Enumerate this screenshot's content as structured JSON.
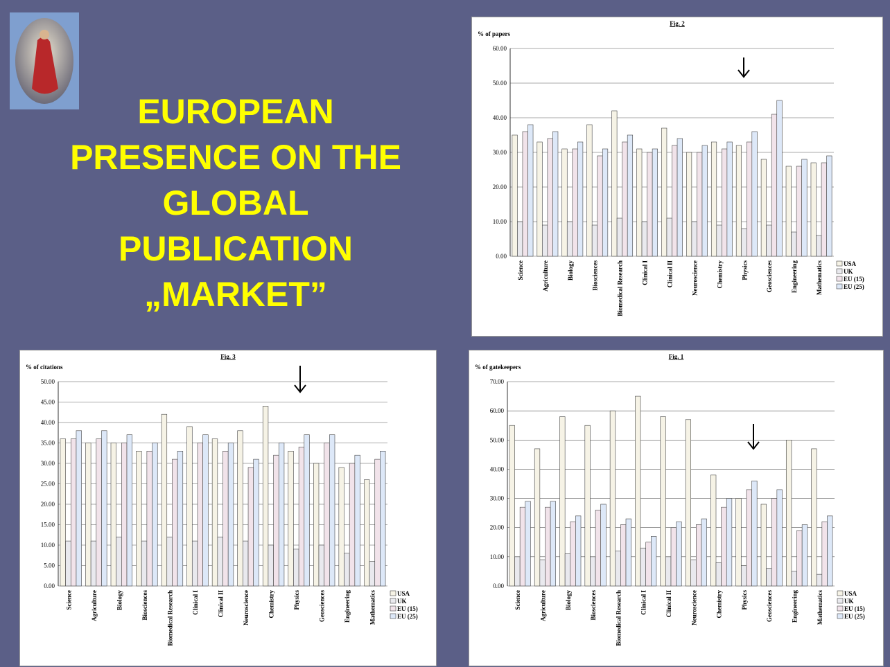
{
  "slide": {
    "title_lines": [
      "EUROPEAN",
      "PRESENCE ON THE",
      "GLOBAL",
      "PUBLICATION",
      "„MARKET”"
    ]
  },
  "chart_data": [
    {
      "type": "bar",
      "title": "Fig. 2",
      "y_label": "% of papers",
      "categories": [
        "Science",
        "Agriculture",
        "Biology",
        "Biosciences",
        "Biomedical Research",
        "Clinical I",
        "Clinical II",
        "Neuroscience",
        "Chemistry",
        "Physics",
        "Geosciences",
        "Engineering",
        "Mathematics"
      ],
      "series": [
        {
          "name": "USA",
          "color": "#f6f3e6",
          "values": [
            35,
            33,
            31,
            38,
            42,
            31,
            37,
            30,
            33,
            32,
            28,
            26,
            27
          ]
        },
        {
          "name": "UK",
          "color": "#e9e9ee",
          "values": [
            10,
            9,
            10,
            9,
            11,
            10,
            11,
            10,
            9,
            8,
            9,
            7,
            6
          ]
        },
        {
          "name": "EU (15)",
          "color": "#f1e3ea",
          "values": [
            36,
            34,
            31,
            29,
            33,
            30,
            32,
            30,
            31,
            33,
            41,
            26,
            27
          ]
        },
        {
          "name": "EU (25)",
          "color": "#dde8f8",
          "values": [
            38,
            36,
            33,
            31,
            35,
            31,
            34,
            32,
            33,
            36,
            45,
            28,
            29
          ]
        }
      ],
      "ylim": [
        0,
        60
      ],
      "yticks": [
        {
          "value": 0,
          "label": "0.00"
        },
        {
          "value": 10,
          "label": "10.00"
        },
        {
          "value": 20,
          "label": "20.00"
        },
        {
          "value": 30,
          "label": "30.00"
        },
        {
          "value": 40,
          "label": "40.00"
        },
        {
          "value": 50,
          "label": "50.00"
        },
        {
          "value": 60,
          "label": "60.00"
        }
      ],
      "grid": true
    },
    {
      "type": "bar",
      "title": "Fig. 3",
      "y_label": "% of citations",
      "categories": [
        "Science",
        "Agriculture",
        "Biology",
        "Biosciences",
        "Biomedical Research",
        "Clinical I",
        "Clinical II",
        "Neuroscience",
        "Chemistry",
        "Physics",
        "Geosciences",
        "Engineering",
        "Mathematics"
      ],
      "series": [
        {
          "name": "USA",
          "color": "#f6f3e6",
          "values": [
            36,
            35,
            35,
            33,
            42,
            39,
            36,
            38,
            44,
            33,
            30,
            29,
            26
          ]
        },
        {
          "name": "UK",
          "color": "#e9e9ee",
          "values": [
            11,
            11,
            12,
            11,
            12,
            11,
            12,
            11,
            10,
            9,
            10,
            8,
            6
          ]
        },
        {
          "name": "EU (15)",
          "color": "#f1e3ea",
          "values": [
            36,
            36,
            35,
            33,
            31,
            35,
            33,
            29,
            32,
            34,
            35,
            30,
            31
          ]
        },
        {
          "name": "EU (25)",
          "color": "#dde8f8",
          "values": [
            38,
            38,
            37,
            35,
            33,
            37,
            35,
            31,
            35,
            37,
            37,
            32,
            33
          ]
        }
      ],
      "ylim": [
        0,
        50
      ],
      "yticks": [
        {
          "value": 0,
          "label": "0.00"
        },
        {
          "value": 5,
          "label": "5.00"
        },
        {
          "value": 10,
          "label": "10.00"
        },
        {
          "value": 15,
          "label": "15.00"
        },
        {
          "value": 20,
          "label": "20.00"
        },
        {
          "value": 25,
          "label": "25.00"
        },
        {
          "value": 30,
          "label": "30.00"
        },
        {
          "value": 35,
          "label": "35.00"
        },
        {
          "value": 40,
          "label": "40.00"
        },
        {
          "value": 45,
          "label": "45.00"
        },
        {
          "value": 50,
          "label": "50.00"
        }
      ],
      "grid": true
    },
    {
      "type": "bar",
      "title": "Fig. 1",
      "y_label": "% of gatekeepers",
      "categories": [
        "Science",
        "Agriculture",
        "Biology",
        "Biosciences",
        "Biomedical Research",
        "Clinical I",
        "Clinical II",
        "Neuroscience",
        "Chemistry",
        "Physics",
        "Geosciences",
        "Engineering",
        "Mathematics"
      ],
      "series": [
        {
          "name": "USA",
          "color": "#f6f3e6",
          "values": [
            55,
            47,
            58,
            55,
            60,
            65,
            58,
            57,
            38,
            30,
            28,
            50,
            47
          ]
        },
        {
          "name": "UK",
          "color": "#e9e9ee",
          "values": [
            10,
            9,
            11,
            10,
            12,
            13,
            10,
            9,
            8,
            7,
            6,
            5,
            4
          ]
        },
        {
          "name": "EU (15)",
          "color": "#f1e3ea",
          "values": [
            27,
            27,
            22,
            26,
            21,
            15,
            20,
            21,
            27,
            33,
            30,
            19,
            22
          ]
        },
        {
          "name": "EU (25)",
          "color": "#dde8f8",
          "values": [
            29,
            29,
            24,
            28,
            23,
            17,
            22,
            23,
            30,
            36,
            33,
            21,
            24
          ]
        }
      ],
      "ylim": [
        0,
        70
      ],
      "yticks": [
        {
          "value": 0,
          "label": "0.00"
        },
        {
          "value": 10,
          "label": "10.00"
        },
        {
          "value": 20,
          "label": "20.00"
        },
        {
          "value": 30,
          "label": "30.00"
        },
        {
          "value": 40,
          "label": "40.00"
        },
        {
          "value": 50,
          "label": "50.00"
        },
        {
          "value": 60,
          "label": "60.00"
        },
        {
          "value": 70,
          "label": "70.00"
        }
      ],
      "grid": true
    }
  ]
}
